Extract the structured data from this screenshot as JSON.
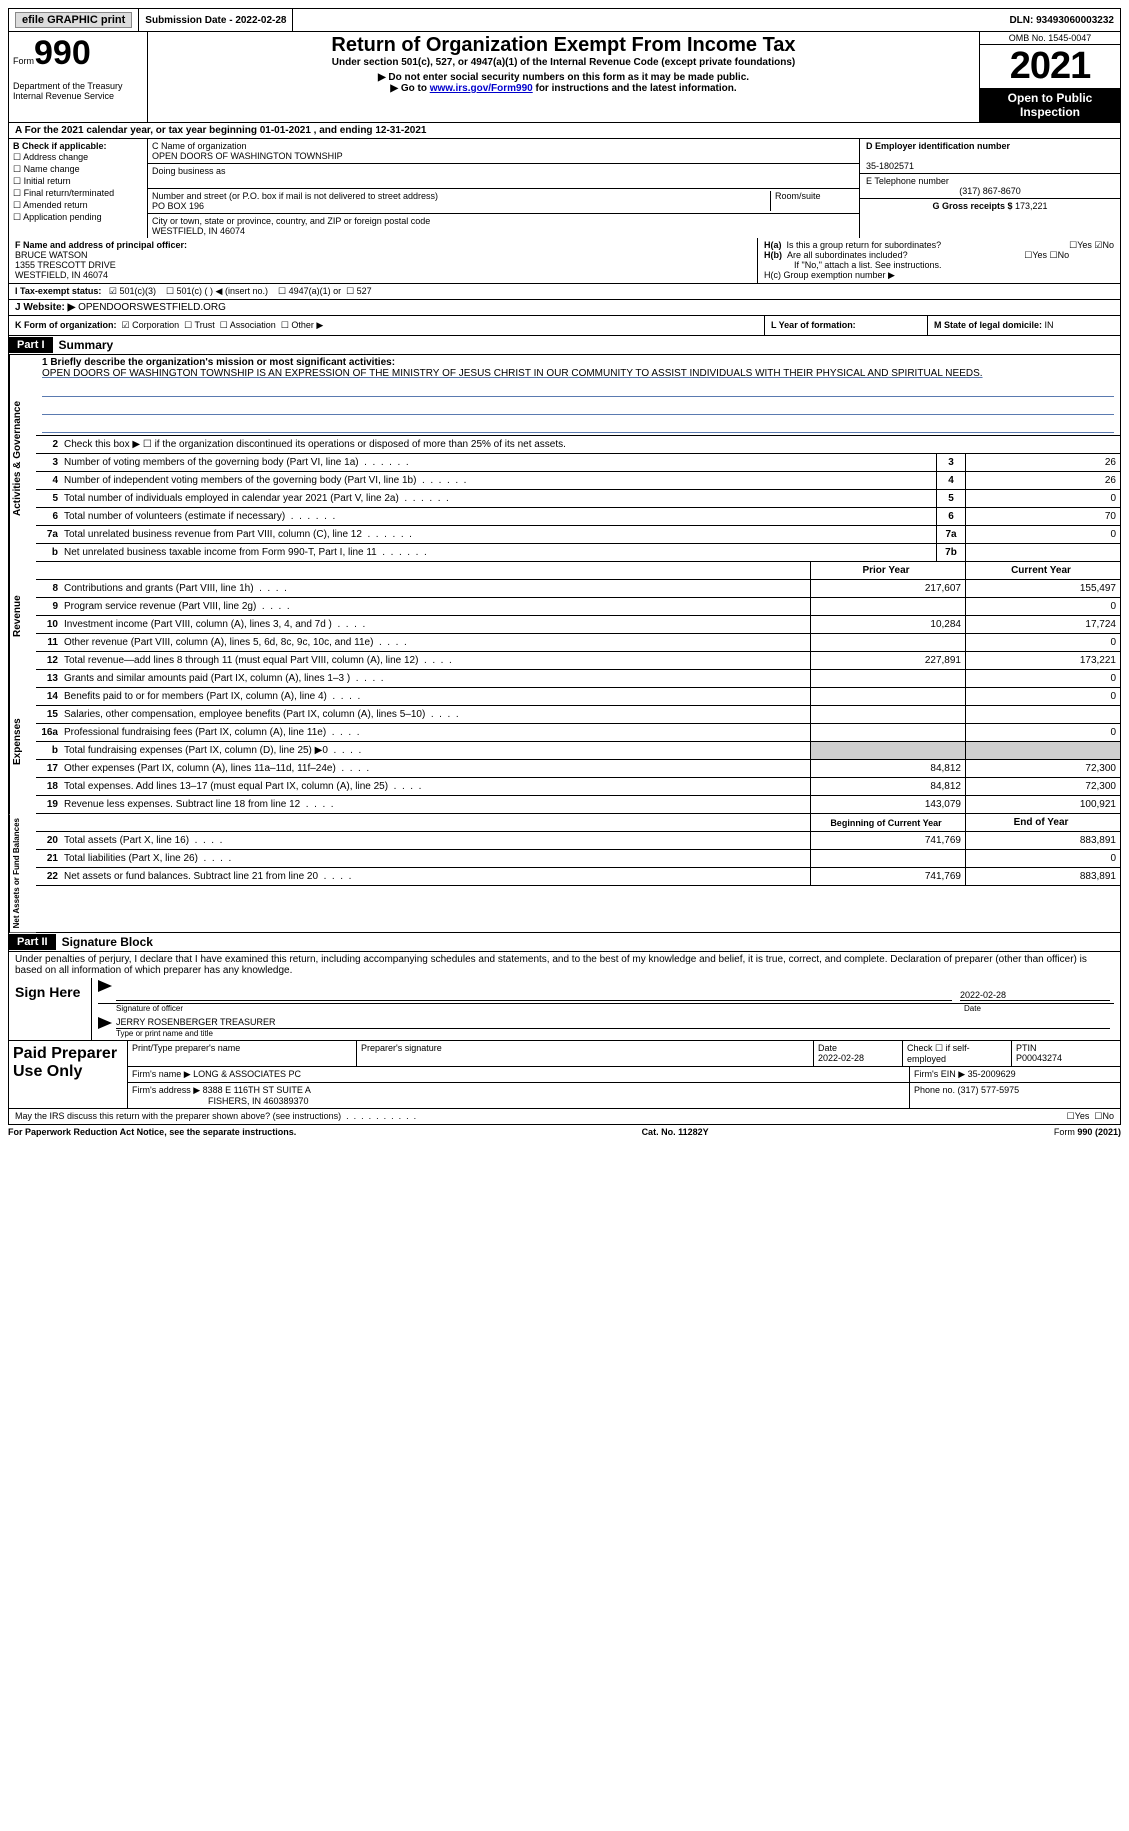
{
  "topbar": {
    "efile": "efile GRAPHIC print",
    "submission_label": "Submission Date - ",
    "submission_date": "2022-02-28",
    "dln_label": "DLN: ",
    "dln": "93493060003232"
  },
  "header": {
    "form_word": "Form",
    "form_num": "990",
    "dept": "Department of the Treasury\nInternal Revenue Service",
    "title": "Return of Organization Exempt From Income Tax",
    "subtitle": "Under section 501(c), 527, or 4947(a)(1) of the Internal Revenue Code (except private foundations)",
    "note1": "▶ Do not enter social security numbers on this form as it may be made public.",
    "note2_pre": "▶ Go to ",
    "note2_link": "www.irs.gov/Form990",
    "note2_post": " for instructions and the latest information.",
    "omb": "OMB No. 1545-0047",
    "year": "2021",
    "open": "Open to Public Inspection"
  },
  "period": "A For the 2021 calendar year, or tax year beginning 01-01-2021   , and ending 12-31-2021",
  "b": {
    "label": "B Check if applicable:",
    "items": [
      "Address change",
      "Name change",
      "Initial return",
      "Final return/terminated",
      "Amended return",
      "Application pending"
    ]
  },
  "c": {
    "name_label": "C Name of organization",
    "name": "OPEN DOORS OF WASHINGTON TOWNSHIP",
    "dba_label": "Doing business as",
    "dba": "",
    "street_label": "Number and street (or P.O. box if mail is not delivered to street address)",
    "room_label": "Room/suite",
    "street": "PO BOX 196",
    "city_label": "City or town, state or province, country, and ZIP or foreign postal code",
    "city": "WESTFIELD, IN  46074"
  },
  "d": {
    "ein_label": "D Employer identification number",
    "ein": "35-1802571",
    "tel_label": "E Telephone number",
    "tel": "(317) 867-8670",
    "gross_label": "G Gross receipts $ ",
    "gross": "173,221"
  },
  "f": {
    "label": "F  Name and address of principal officer:",
    "name": "BRUCE WATSON",
    "addr1": "1355 TRESCOTT DRIVE",
    "addr2": "WESTFIELD, IN  46074"
  },
  "h": {
    "a_label": "H(a)  Is this a group return for subordinates?",
    "b_label": "H(b)  Are all subordinates included?",
    "b_note": "If \"No,\" attach a list. See instructions.",
    "c_label": "H(c)  Group exemption number ▶",
    "yes": "Yes",
    "no": "No"
  },
  "i": {
    "label": "I   Tax-exempt status:",
    "o1": "501(c)(3)",
    "o2": "501(c) (  ) ◀ (insert no.)",
    "o3": "4947(a)(1) or",
    "o4": "527"
  },
  "j": {
    "label": "J   Website: ▶",
    "value": " OPENDOORSWESTFIELD.ORG"
  },
  "k": {
    "label": "K Form of organization:",
    "o1": "Corporation",
    "o2": "Trust",
    "o3": "Association",
    "o4": "Other ▶",
    "l_label": "L Year of formation:",
    "l_val": "",
    "m_label": "M State of legal domicile: ",
    "m_val": "IN"
  },
  "part1": {
    "header": "Part I",
    "title": "Summary",
    "line1_label": "1  Briefly describe the organization's mission or most significant activities:",
    "mission": "OPEN DOORS OF WASHINGTON TOWNSHIP IS AN EXPRESSION OF THE MINISTRY OF JESUS CHRIST IN OUR COMMUNITY TO ASSIST INDIVIDUALS WITH THEIR PHYSICAL AND SPIRITUAL NEEDS.",
    "line2": "Check this box ▶ ☐ if the organization discontinued its operations or disposed of more than 25% of its net assets.",
    "rows_ag": [
      {
        "n": "3",
        "label": "Number of voting members of the governing body (Part VI, line 1a)",
        "box": "3",
        "val": "26"
      },
      {
        "n": "4",
        "label": "Number of independent voting members of the governing body (Part VI, line 1b)",
        "box": "4",
        "val": "26"
      },
      {
        "n": "5",
        "label": "Total number of individuals employed in calendar year 2021 (Part V, line 2a)",
        "box": "5",
        "val": "0"
      },
      {
        "n": "6",
        "label": "Total number of volunteers (estimate if necessary)",
        "box": "6",
        "val": "70"
      },
      {
        "n": "7a",
        "label": "Total unrelated business revenue from Part VIII, column (C), line 12",
        "box": "7a",
        "val": "0"
      },
      {
        "n": "b",
        "label": "Net unrelated business taxable income from Form 990-T, Part I, line 11",
        "box": "7b",
        "val": ""
      }
    ],
    "prior_header": "Prior Year",
    "curr_header": "Current Year",
    "rows_rev": [
      {
        "n": "8",
        "label": "Contributions and grants (Part VIII, line 1h)",
        "prior": "217,607",
        "curr": "155,497"
      },
      {
        "n": "9",
        "label": "Program service revenue (Part VIII, line 2g)",
        "prior": "",
        "curr": "0"
      },
      {
        "n": "10",
        "label": "Investment income (Part VIII, column (A), lines 3, 4, and 7d )",
        "prior": "10,284",
        "curr": "17,724"
      },
      {
        "n": "11",
        "label": "Other revenue (Part VIII, column (A), lines 5, 6d, 8c, 9c, 10c, and 11e)",
        "prior": "",
        "curr": "0"
      },
      {
        "n": "12",
        "label": "Total revenue—add lines 8 through 11 (must equal Part VIII, column (A), line 12)",
        "prior": "227,891",
        "curr": "173,221"
      }
    ],
    "rows_exp": [
      {
        "n": "13",
        "label": "Grants and similar amounts paid (Part IX, column (A), lines 1–3 )",
        "prior": "",
        "curr": "0"
      },
      {
        "n": "14",
        "label": "Benefits paid to or for members (Part IX, column (A), line 4)",
        "prior": "",
        "curr": "0"
      },
      {
        "n": "15",
        "label": "Salaries, other compensation, employee benefits (Part IX, column (A), lines 5–10)",
        "prior": "",
        "curr": ""
      },
      {
        "n": "16a",
        "label": "Professional fundraising fees (Part IX, column (A), line 11e)",
        "prior": "",
        "curr": "0"
      },
      {
        "n": "b",
        "label": "Total fundraising expenses (Part IX, column (D), line 25) ▶0",
        "prior": "GREY",
        "curr": "GREY"
      },
      {
        "n": "17",
        "label": "Other expenses (Part IX, column (A), lines 11a–11d, 11f–24e)",
        "prior": "84,812",
        "curr": "72,300"
      },
      {
        "n": "18",
        "label": "Total expenses. Add lines 13–17 (must equal Part IX, column (A), line 25)",
        "prior": "84,812",
        "curr": "72,300"
      },
      {
        "n": "19",
        "label": "Revenue less expenses. Subtract line 18 from line 12",
        "prior": "143,079",
        "curr": "100,921"
      }
    ],
    "beg_header": "Beginning of Current Year",
    "end_header": "End of Year",
    "rows_net": [
      {
        "n": "20",
        "label": "Total assets (Part X, line 16)",
        "prior": "741,769",
        "curr": "883,891"
      },
      {
        "n": "21",
        "label": "Total liabilities (Part X, line 26)",
        "prior": "",
        "curr": "0"
      },
      {
        "n": "22",
        "label": "Net assets or fund balances. Subtract line 21 from line 20",
        "prior": "741,769",
        "curr": "883,891"
      }
    ],
    "vlabels": {
      "ag": "Activities & Governance",
      "rev": "Revenue",
      "exp": "Expenses",
      "net": "Net Assets or Fund Balances"
    }
  },
  "part2": {
    "header": "Part II",
    "title": "Signature Block",
    "decl": "Under penalties of perjury, I declare that I have examined this return, including accompanying schedules and statements, and to the best of my knowledge and belief, it is true, correct, and complete. Declaration of preparer (other than officer) is based on all information of which preparer has any knowledge.",
    "sign_here": "Sign Here",
    "sig_officer": "Signature of officer",
    "sig_date": "2022-02-28",
    "date_label": "Date",
    "typed_name": "JERRY ROSENBERGER  TREASURER",
    "typed_label": "Type or print name and title",
    "paid": "Paid Preparer Use Only",
    "pp_name_label": "Print/Type preparer's name",
    "pp_sig_label": "Preparer's signature",
    "pp_date_label": "Date",
    "pp_date": "2022-02-28",
    "pp_check_label": "Check ☐ if self-employed",
    "ptin_label": "PTIN",
    "ptin": "P00043274",
    "firm_name_label": "Firm's name    ▶ ",
    "firm_name": "LONG & ASSOCIATES PC",
    "firm_ein_label": "Firm's EIN ▶ ",
    "firm_ein": "35-2009629",
    "firm_addr_label": "Firm's address ▶ ",
    "firm_addr1": "8388 E 116TH ST SUITE A",
    "firm_addr2": "FISHERS, IN  460389370",
    "phone_label": "Phone no. ",
    "phone": "(317) 577-5975",
    "discuss": "May the IRS discuss this return with the preparer shown above? (see instructions)",
    "paperwork": "For Paperwork Reduction Act Notice, see the separate instructions.",
    "cat": "Cat. No. 11282Y",
    "formref": "Form 990 (2021)"
  }
}
